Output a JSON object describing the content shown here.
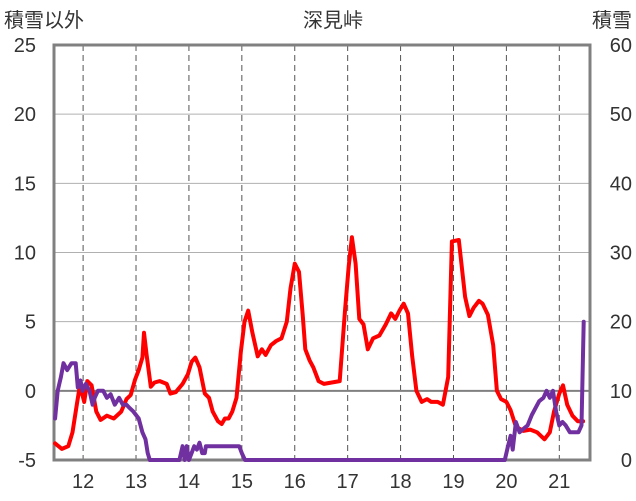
{
  "chart_data": {
    "type": "line",
    "title": "深見峠",
    "ylabel_left": "積雪以外",
    "ylabel_right": "積雪",
    "x_range": [
      11.45,
      21.58
    ],
    "x_ticks": [
      12,
      13,
      14,
      15,
      16,
      17,
      18,
      19,
      20,
      21
    ],
    "x_tick_labels": [
      "12",
      "13",
      "14",
      "15",
      "16",
      "17",
      "18",
      "19",
      "20",
      "21"
    ],
    "y_left_range": [
      -5,
      25
    ],
    "y_left_ticks": [
      25,
      20,
      15,
      10,
      5,
      0,
      -5
    ],
    "y_left_tick_labels": [
      "25",
      "20",
      "15",
      "10",
      "5",
      "0",
      "-5"
    ],
    "y_right_range": [
      0,
      60
    ],
    "y_right_ticks": [
      60,
      50,
      40,
      30,
      20,
      10,
      0
    ],
    "y_right_tick_labels": [
      "60",
      "50",
      "40",
      "30",
      "20",
      "10",
      "0"
    ],
    "grid": true,
    "colors": {
      "temperature": "#ff0000",
      "snow": "#7030a0",
      "frame": "#808080",
      "zero_line": "#808080",
      "grid": "#555555"
    },
    "series": [
      {
        "axis": "left",
        "color": "#ff0000",
        "points": [
          [
            11.47,
            -3.8
          ],
          [
            11.6,
            -4.2
          ],
          [
            11.72,
            -4.0
          ],
          [
            11.8,
            -3.0
          ],
          [
            11.88,
            -1.0
          ],
          [
            11.94,
            0.4
          ],
          [
            12.02,
            -0.8
          ],
          [
            12.08,
            0.7
          ],
          [
            12.16,
            0.4
          ],
          [
            12.25,
            -1.5
          ],
          [
            12.33,
            -2.1
          ],
          [
            12.45,
            -1.8
          ],
          [
            12.58,
            -2.0
          ],
          [
            12.72,
            -1.5
          ],
          [
            12.82,
            -0.6
          ],
          [
            12.9,
            -0.3
          ],
          [
            12.98,
            0.8
          ],
          [
            13.05,
            1.5
          ],
          [
            13.12,
            2.4
          ],
          [
            13.15,
            4.2
          ],
          [
            13.2,
            2.6
          ],
          [
            13.28,
            0.3
          ],
          [
            13.35,
            0.6
          ],
          [
            13.45,
            0.7
          ],
          [
            13.58,
            0.5
          ],
          [
            13.65,
            -0.2
          ],
          [
            13.75,
            -0.1
          ],
          [
            13.88,
            0.5
          ],
          [
            13.98,
            1.2
          ],
          [
            14.05,
            2.1
          ],
          [
            14.12,
            2.4
          ],
          [
            14.2,
            1.7
          ],
          [
            14.3,
            -0.2
          ],
          [
            14.38,
            -0.5
          ],
          [
            14.45,
            -1.5
          ],
          [
            14.55,
            -2.2
          ],
          [
            14.62,
            -2.4
          ],
          [
            14.68,
            -2.0
          ],
          [
            14.75,
            -2.0
          ],
          [
            14.82,
            -1.5
          ],
          [
            14.9,
            -0.5
          ],
          [
            14.98,
            2.8
          ],
          [
            15.05,
            5.0
          ],
          [
            15.12,
            5.8
          ],
          [
            15.2,
            4.2
          ],
          [
            15.3,
            2.5
          ],
          [
            15.38,
            3.0
          ],
          [
            15.45,
            2.6
          ],
          [
            15.55,
            3.3
          ],
          [
            15.65,
            3.6
          ],
          [
            15.75,
            3.8
          ],
          [
            15.85,
            5.0
          ],
          [
            15.92,
            7.4
          ],
          [
            16.0,
            9.2
          ],
          [
            16.08,
            8.6
          ],
          [
            16.15,
            5.5
          ],
          [
            16.2,
            3.0
          ],
          [
            16.28,
            2.2
          ],
          [
            16.35,
            1.7
          ],
          [
            16.45,
            0.7
          ],
          [
            16.55,
            0.5
          ],
          [
            16.7,
            0.6
          ],
          [
            16.85,
            0.7
          ],
          [
            16.95,
            5.8
          ],
          [
            17.02,
            9.0
          ],
          [
            17.08,
            11.1
          ],
          [
            17.15,
            9.2
          ],
          [
            17.22,
            5.2
          ],
          [
            17.3,
            4.8
          ],
          [
            17.38,
            3.0
          ],
          [
            17.48,
            3.8
          ],
          [
            17.6,
            4.0
          ],
          [
            17.72,
            4.8
          ],
          [
            17.82,
            5.6
          ],
          [
            17.9,
            5.2
          ],
          [
            17.98,
            5.8
          ],
          [
            18.06,
            6.3
          ],
          [
            18.14,
            5.6
          ],
          [
            18.22,
            2.5
          ],
          [
            18.3,
            0.0
          ],
          [
            18.4,
            -0.8
          ],
          [
            18.5,
            -0.6
          ],
          [
            18.58,
            -0.8
          ],
          [
            18.7,
            -0.8
          ],
          [
            18.8,
            -1.0
          ],
          [
            18.9,
            1.0
          ],
          [
            18.97,
            10.8
          ],
          [
            19.1,
            10.9
          ],
          [
            19.22,
            6.8
          ],
          [
            19.3,
            5.4
          ],
          [
            19.38,
            6.0
          ],
          [
            19.48,
            6.5
          ],
          [
            19.55,
            6.3
          ],
          [
            19.65,
            5.5
          ],
          [
            19.75,
            3.3
          ],
          [
            19.82,
            0.0
          ],
          [
            19.9,
            -0.6
          ],
          [
            20.0,
            -0.8
          ],
          [
            20.08,
            -1.4
          ],
          [
            20.18,
            -2.6
          ],
          [
            20.32,
            -2.9
          ],
          [
            20.45,
            -2.8
          ],
          [
            20.58,
            -3.0
          ],
          [
            20.72,
            -3.5
          ],
          [
            20.82,
            -3.0
          ],
          [
            20.9,
            -1.5
          ],
          [
            21.0,
            -0.2
          ],
          [
            21.07,
            0.4
          ],
          [
            21.15,
            -1.0
          ],
          [
            21.25,
            -1.8
          ],
          [
            21.35,
            -2.2
          ],
          [
            21.45,
            -2.2
          ]
        ]
      },
      {
        "axis": "right",
        "color": "#7030a0",
        "points": [
          [
            11.47,
            6.0
          ],
          [
            11.52,
            10.0
          ],
          [
            11.58,
            12.0
          ],
          [
            11.63,
            14.0
          ],
          [
            11.7,
            13.0
          ],
          [
            11.78,
            14.0
          ],
          [
            11.86,
            14.0
          ],
          [
            11.9,
            10.5
          ],
          [
            11.95,
            11.5
          ],
          [
            11.99,
            10.0
          ],
          [
            12.05,
            11.0
          ],
          [
            12.12,
            10.0
          ],
          [
            12.18,
            8.0
          ],
          [
            12.22,
            9.0
          ],
          [
            12.28,
            10.0
          ],
          [
            12.38,
            10.0
          ],
          [
            12.45,
            9.0
          ],
          [
            12.52,
            9.5
          ],
          [
            12.6,
            8.0
          ],
          [
            12.68,
            9.0
          ],
          [
            12.75,
            8.0
          ],
          [
            12.82,
            8.0
          ],
          [
            12.88,
            7.5
          ],
          [
            12.95,
            7.0
          ],
          [
            13.05,
            6.0
          ],
          [
            13.12,
            4.0
          ],
          [
            13.18,
            3.0
          ],
          [
            13.22,
            1.0
          ],
          [
            13.26,
            0.0
          ],
          [
            13.4,
            0.0
          ],
          [
            13.5,
            0.0
          ],
          [
            13.72,
            0.0
          ],
          [
            13.82,
            0.0
          ],
          [
            13.88,
            2.0
          ],
          [
            13.92,
            0.0
          ],
          [
            13.96,
            2.0
          ],
          [
            14.0,
            0.0
          ],
          [
            14.05,
            1.0
          ],
          [
            14.1,
            2.0
          ],
          [
            14.15,
            1.5
          ],
          [
            14.2,
            2.5
          ],
          [
            14.25,
            1.0
          ],
          [
            14.3,
            1.0
          ],
          [
            14.32,
            2.0
          ],
          [
            14.4,
            2.0
          ],
          [
            14.6,
            2.0
          ],
          [
            14.95,
            2.0
          ],
          [
            15.0,
            1.0
          ],
          [
            15.06,
            0.0
          ],
          [
            15.5,
            0.0
          ],
          [
            16.5,
            0.0
          ],
          [
            17.5,
            0.0
          ],
          [
            18.5,
            0.0
          ],
          [
            19.5,
            0.0
          ],
          [
            19.97,
            0.0
          ],
          [
            20.03,
            2.0
          ],
          [
            20.08,
            3.5
          ],
          [
            20.12,
            1.5
          ],
          [
            20.18,
            5.5
          ],
          [
            20.25,
            4.0
          ],
          [
            20.32,
            4.5
          ],
          [
            20.4,
            5.0
          ],
          [
            20.48,
            6.5
          ],
          [
            20.55,
            7.5
          ],
          [
            20.62,
            8.5
          ],
          [
            20.7,
            9.0
          ],
          [
            20.76,
            10.0
          ],
          [
            20.82,
            9.0
          ],
          [
            20.88,
            10.0
          ],
          [
            20.94,
            7.0
          ],
          [
            21.0,
            5.0
          ],
          [
            21.06,
            5.5
          ],
          [
            21.12,
            5.0
          ],
          [
            21.2,
            4.0
          ],
          [
            21.28,
            4.0
          ],
          [
            21.36,
            4.0
          ],
          [
            21.42,
            5.0
          ],
          [
            21.46,
            20.0
          ]
        ]
      }
    ]
  }
}
